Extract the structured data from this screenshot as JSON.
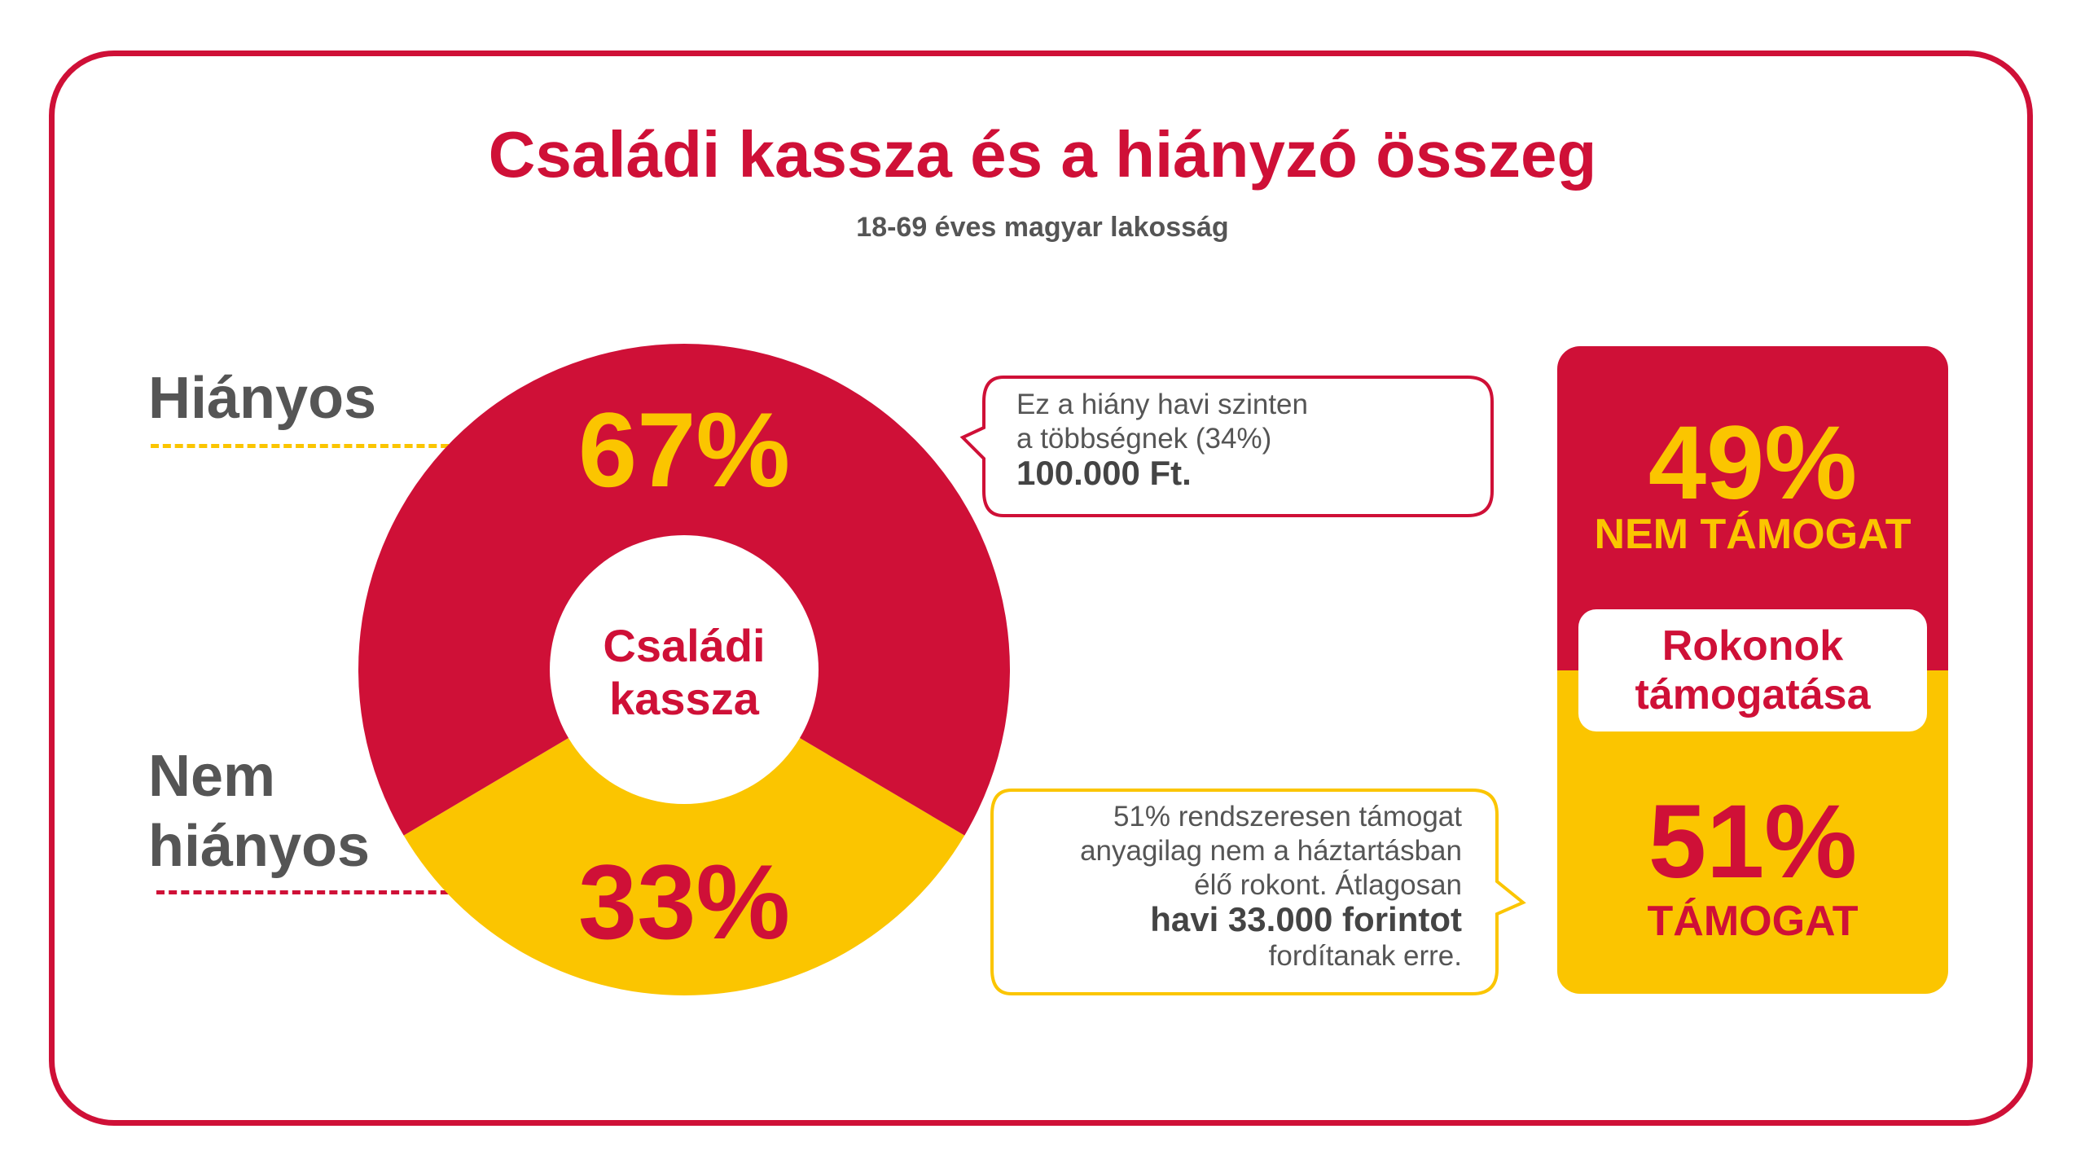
{
  "title": "Családi kassza és a hiányzó összeg",
  "subtitle": "18-69 éves magyar lakosság",
  "colors": {
    "red": "#cf1037",
    "yellow": "#fbc500",
    "gray": "#555555"
  },
  "chart_data": [
    {
      "type": "pie",
      "title": "",
      "center_label": [
        "Családi",
        "kassza"
      ],
      "slices": [
        {
          "label_lines": [
            "Hiányos"
          ],
          "value": 67,
          "display": "67%",
          "color": "#cf1037",
          "value_color": "#fbc500"
        },
        {
          "label_lines": [
            "Nem",
            "hiányos"
          ],
          "value": 33,
          "display": "33%",
          "color": "#fbc500",
          "value_color": "#cf1037"
        }
      ]
    },
    {
      "type": "bar",
      "title": "",
      "center_label": [
        "Rokonok",
        "támogatása"
      ],
      "categories": [
        "NEM TÁMOGAT",
        "TÁMOGAT"
      ],
      "values": [
        49,
        51
      ],
      "display": [
        "49%",
        "51%"
      ]
    }
  ],
  "callout_top": {
    "lines": [
      "Ez a hiány havi szinten",
      "a többségnek (34%)"
    ],
    "bold": "100.000 Ft."
  },
  "callout_bottom": {
    "lines_before": [
      "51% rendszeresen támogat",
      "anyagilag nem a háztartásban",
      "élő rokont. Átlagosan"
    ],
    "bold": "havi 33.000 forintot",
    "line_after": "fordítanak erre."
  }
}
